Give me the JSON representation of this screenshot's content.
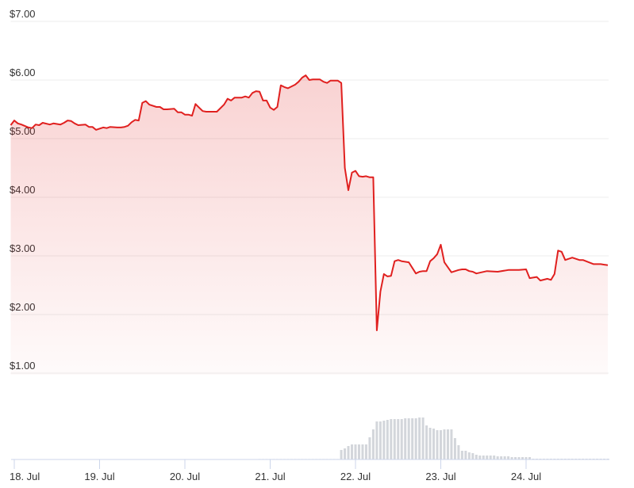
{
  "chart_data": {
    "type": "line",
    "title": "",
    "xlabel": "",
    "ylabel": "",
    "ylim": [
      1,
      7
    ],
    "y_ticks": [
      "$7.00",
      "$6.00",
      "$5.00",
      "$4.00",
      "$3.00",
      "$2.00",
      "$1.00"
    ],
    "y_tick_values": [
      7,
      6,
      5,
      4,
      3,
      2,
      1
    ],
    "x_ticks": [
      "18. Jul",
      "19. Jul",
      "20. Jul",
      "21. Jul",
      "22. Jul",
      "23. Jul",
      "24. Jul"
    ],
    "x_tick_days": [
      18,
      19,
      20,
      21,
      22,
      23,
      24
    ],
    "xlim": [
      "17 Jul 23:00",
      "24 Jul 23:00"
    ],
    "grid": true,
    "legend": "none",
    "colors": {
      "line": "#e0201f",
      "fill": "#e0201f",
      "volume": "#d3d6db",
      "axis": "#ccd6eb",
      "grid": "#ececec"
    },
    "price": [
      [
        "17 Jul 23:00",
        5.23
      ],
      [
        "18 Jul 00:00",
        5.31
      ],
      [
        "18 Jul 01:00",
        5.26
      ],
      [
        "18 Jul 02:00",
        5.24
      ],
      [
        "18 Jul 04:00",
        5.19
      ],
      [
        "18 Jul 05:00",
        5.18
      ],
      [
        "18 Jul 06:00",
        5.24
      ],
      [
        "18 Jul 07:00",
        5.23
      ],
      [
        "18 Jul 08:00",
        5.27
      ],
      [
        "18 Jul 10:00",
        5.24
      ],
      [
        "18 Jul 11:00",
        5.26
      ],
      [
        "18 Jul 13:00",
        5.24
      ],
      [
        "18 Jul 14:00",
        5.27
      ],
      [
        "18 Jul 15:00",
        5.31
      ],
      [
        "18 Jul 16:00",
        5.3
      ],
      [
        "18 Jul 17:00",
        5.26
      ],
      [
        "18 Jul 18:00",
        5.23
      ],
      [
        "18 Jul 20:00",
        5.24
      ],
      [
        "18 Jul 21:00",
        5.2
      ],
      [
        "18 Jul 22:00",
        5.2
      ],
      [
        "18 Jul 23:00",
        5.15
      ],
      [
        "19 Jul 01:00",
        5.19
      ],
      [
        "19 Jul 02:00",
        5.18
      ],
      [
        "19 Jul 03:00",
        5.2
      ],
      [
        "19 Jul 05:00",
        5.19
      ],
      [
        "19 Jul 06:00",
        5.19
      ],
      [
        "19 Jul 07:00",
        5.2
      ],
      [
        "19 Jul 08:00",
        5.22
      ],
      [
        "19 Jul 09:00",
        5.28
      ],
      [
        "19 Jul 10:00",
        5.32
      ],
      [
        "19 Jul 11:00",
        5.31
      ],
      [
        "19 Jul 12:00",
        5.61
      ],
      [
        "19 Jul 13:00",
        5.64
      ],
      [
        "19 Jul 14:00",
        5.58
      ],
      [
        "19 Jul 16:00",
        5.54
      ],
      [
        "19 Jul 17:00",
        5.54
      ],
      [
        "19 Jul 18:00",
        5.5
      ],
      [
        "19 Jul 19:00",
        5.5
      ],
      [
        "19 Jul 21:00",
        5.51
      ],
      [
        "19 Jul 22:00",
        5.45
      ],
      [
        "19 Jul 23:00",
        5.45
      ],
      [
        "20 Jul 00:00",
        5.41
      ],
      [
        "20 Jul 01:00",
        5.41
      ],
      [
        "20 Jul 02:00",
        5.39
      ],
      [
        "20 Jul 03:00",
        5.59
      ],
      [
        "20 Jul 04:00",
        5.53
      ],
      [
        "20 Jul 05:00",
        5.47
      ],
      [
        "20 Jul 06:00",
        5.46
      ],
      [
        "20 Jul 09:00",
        5.46
      ],
      [
        "20 Jul 11:00",
        5.58
      ],
      [
        "20 Jul 12:00",
        5.68
      ],
      [
        "20 Jul 13:00",
        5.65
      ],
      [
        "20 Jul 14:00",
        5.7
      ],
      [
        "20 Jul 16:00",
        5.7
      ],
      [
        "20 Jul 17:00",
        5.72
      ],
      [
        "20 Jul 18:00",
        5.7
      ],
      [
        "20 Jul 19:00",
        5.78
      ],
      [
        "20 Jul 20:00",
        5.81
      ],
      [
        "20 Jul 21:00",
        5.8
      ],
      [
        "20 Jul 22:00",
        5.65
      ],
      [
        "20 Jul 23:00",
        5.65
      ],
      [
        "21 Jul 00:00",
        5.53
      ],
      [
        "21 Jul 01:00",
        5.49
      ],
      [
        "21 Jul 02:00",
        5.54
      ],
      [
        "21 Jul 03:00",
        5.91
      ],
      [
        "21 Jul 04:00",
        5.88
      ],
      [
        "21 Jul 05:00",
        5.86
      ],
      [
        "21 Jul 07:00",
        5.92
      ],
      [
        "21 Jul 08:00",
        5.97
      ],
      [
        "21 Jul 09:00",
        6.04
      ],
      [
        "21 Jul 10:00",
        6.08
      ],
      [
        "21 Jul 11:00",
        6.0
      ],
      [
        "21 Jul 12:00",
        6.01
      ],
      [
        "21 Jul 14:00",
        6.01
      ],
      [
        "21 Jul 15:00",
        5.97
      ],
      [
        "21 Jul 16:00",
        5.95
      ],
      [
        "21 Jul 17:00",
        5.99
      ],
      [
        "21 Jul 19:00",
        5.99
      ],
      [
        "21 Jul 20:00",
        5.95
      ],
      [
        "21 Jul 21:00",
        4.5
      ],
      [
        "21 Jul 22:00",
        4.12
      ],
      [
        "21 Jul 23:00",
        4.42
      ],
      [
        "22 Jul 00:00",
        4.45
      ],
      [
        "22 Jul 01:00",
        4.36
      ],
      [
        "22 Jul 02:00",
        4.35
      ],
      [
        "22 Jul 03:00",
        4.36
      ],
      [
        "22 Jul 04:00",
        4.34
      ],
      [
        "22 Jul 05:00",
        4.34
      ],
      [
        "22 Jul 06:00",
        1.73
      ],
      [
        "22 Jul 07:00",
        2.39
      ],
      [
        "22 Jul 08:00",
        2.69
      ],
      [
        "22 Jul 09:00",
        2.65
      ],
      [
        "22 Jul 10:00",
        2.66
      ],
      [
        "22 Jul 11:00",
        2.91
      ],
      [
        "22 Jul 12:00",
        2.93
      ],
      [
        "22 Jul 13:00",
        2.91
      ],
      [
        "22 Jul 15:00",
        2.89
      ],
      [
        "22 Jul 17:00",
        2.7
      ],
      [
        "22 Jul 18:00",
        2.73
      ],
      [
        "22 Jul 19:00",
        2.74
      ],
      [
        "22 Jul 20:00",
        2.74
      ],
      [
        "22 Jul 21:00",
        2.91
      ],
      [
        "22 Jul 22:00",
        2.96
      ],
      [
        "22 Jul 23:00",
        3.03
      ],
      [
        "23 Jul 00:00",
        3.19
      ],
      [
        "23 Jul 01:00",
        2.89
      ],
      [
        "23 Jul 03:00",
        2.72
      ],
      [
        "23 Jul 05:00",
        2.76
      ],
      [
        "23 Jul 06:00",
        2.77
      ],
      [
        "23 Jul 07:00",
        2.77
      ],
      [
        "23 Jul 08:00",
        2.74
      ],
      [
        "23 Jul 09:00",
        2.73
      ],
      [
        "23 Jul 10:00",
        2.7
      ],
      [
        "23 Jul 13:00",
        2.74
      ],
      [
        "23 Jul 16:00",
        2.73
      ],
      [
        "23 Jul 19:00",
        2.76
      ],
      [
        "23 Jul 22:00",
        2.76
      ],
      [
        "24 Jul 00:00",
        2.77
      ],
      [
        "24 Jul 01:00",
        2.62
      ],
      [
        "24 Jul 03:00",
        2.64
      ],
      [
        "24 Jul 04:00",
        2.58
      ],
      [
        "24 Jul 06:00",
        2.61
      ],
      [
        "24 Jul 07:00",
        2.59
      ],
      [
        "24 Jul 08:00",
        2.69
      ],
      [
        "24 Jul 09:00",
        3.09
      ],
      [
        "24 Jul 10:00",
        3.07
      ],
      [
        "24 Jul 11:00",
        2.93
      ],
      [
        "24 Jul 13:00",
        2.97
      ],
      [
        "24 Jul 15:00",
        2.93
      ],
      [
        "24 Jul 16:00",
        2.93
      ],
      [
        "24 Jul 19:00",
        2.86
      ],
      [
        "24 Jul 21:00",
        2.86
      ],
      [
        "24 Jul 23:00",
        2.84
      ]
    ],
    "volume": {
      "from": "19 Jul 15:00",
      "interval_hours": 1,
      "values": [
        0.5,
        0.5,
        0.5,
        0.5,
        0.5,
        0.5,
        0.5,
        0.5,
        0.5,
        0,
        0,
        0,
        0.5,
        0.5,
        0.5,
        0.5,
        0.5,
        0.5,
        0.5,
        0.5,
        0.5,
        0.5,
        0.5,
        0.5,
        0,
        0,
        0,
        0,
        0,
        0,
        0.6,
        0.6,
        0.6,
        0.6,
        0.6,
        0.6,
        0.6,
        0.6,
        0.6,
        0.6,
        0.6,
        0.6,
        0.6,
        0.6,
        0.6,
        0.6,
        0.6,
        0.6,
        0.6,
        0.6,
        0.6,
        0.6,
        0.6,
        12,
        14,
        17,
        19,
        19,
        19,
        19,
        19,
        28,
        38,
        48,
        48,
        49,
        50,
        51,
        51,
        51,
        51,
        52,
        52,
        52,
        52,
        53,
        53,
        43,
        40,
        39,
        37,
        37,
        38,
        38,
        38,
        27,
        18,
        11,
        11,
        9,
        8,
        6,
        5,
        5,
        5,
        5,
        5,
        4,
        4,
        4,
        4,
        3,
        3,
        3,
        3,
        3,
        3,
        1,
        1,
        1,
        1,
        1,
        1,
        1,
        1,
        1,
        1,
        1,
        1,
        1,
        1,
        1,
        1,
        1,
        1,
        1,
        1,
        1,
        1
      ]
    }
  }
}
